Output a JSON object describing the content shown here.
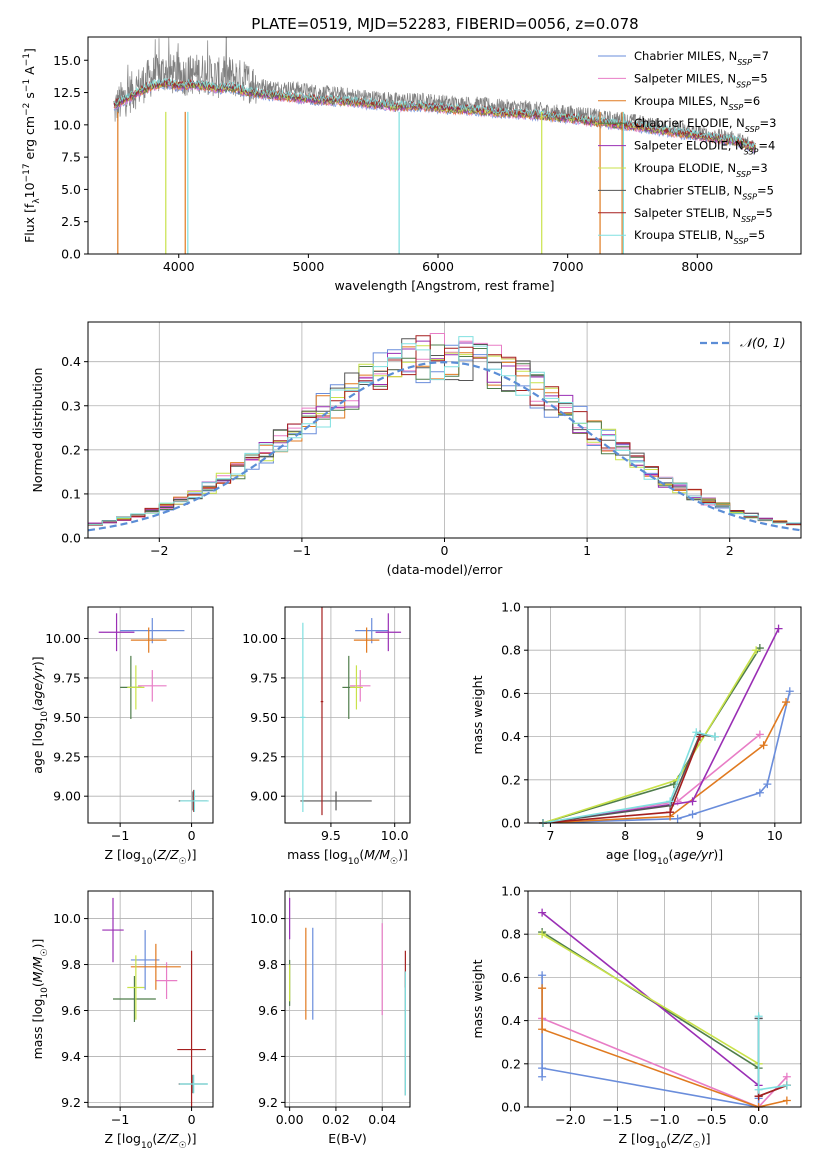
{
  "figure": {
    "title": "PLATE=0519, MJD=52283, FIBERID=0056, z=0.078"
  },
  "series_colors": [
    "#6a8ddb",
    "#e87dc6",
    "#e07a20",
    "#4f7d4b",
    "#9a2fb5",
    "#c9e24a",
    "#555555",
    "#a51f1f",
    "#80e0e0"
  ],
  "chart_data": [
    {
      "id": "spectrum",
      "type": "line",
      "title": "PLATE=0519, MJD=52283, FIBERID=0056, z=0.078",
      "xlabel": "wavelength [Angstrom, rest frame]",
      "ylabel": "Flux [f_λ10^-17 erg cm^-2 s^-1 A^-1]",
      "xlim": [
        3300,
        8800
      ],
      "ylim": [
        0,
        16.8
      ],
      "xticks": [
        4000,
        5000,
        6000,
        7000,
        8000
      ],
      "yticks": [
        0.0,
        2.5,
        5.0,
        7.5,
        10.0,
        12.5,
        15.0
      ],
      "grid": false,
      "legend_position": "top-right",
      "data_trace": {
        "name": "data",
        "color": "#808080",
        "x": [
          3500,
          3600,
          3700,
          3800,
          3900,
          4000,
          4100,
          4200,
          4300,
          4400,
          4500,
          4700,
          4900,
          5100,
          5300,
          5500,
          5700,
          5900,
          6100,
          6300,
          6500,
          6700,
          6900,
          7100,
          7300,
          7500,
          7700,
          7900,
          8100,
          8300,
          8450
        ],
        "y": [
          11.2,
          12.3,
          13.0,
          13.8,
          14.1,
          13.7,
          13.9,
          14.0,
          13.6,
          13.8,
          13.4,
          12.9,
          12.8,
          12.5,
          12.3,
          12.1,
          11.9,
          11.9,
          11.7,
          11.6,
          11.4,
          11.3,
          11.0,
          10.9,
          10.5,
          10.3,
          9.9,
          9.6,
          9.2,
          8.9,
          8.4
        ]
      },
      "model_trace": {
        "x": [
          3500,
          3600,
          3700,
          3800,
          3900,
          4000,
          4100,
          4200,
          4300,
          4400,
          4500,
          4700,
          4900,
          5100,
          5300,
          5500,
          5700,
          5900,
          6100,
          6300,
          6500,
          6700,
          6900,
          7100,
          7300,
          7500,
          7700,
          7900,
          8100,
          8300,
          8450
        ],
        "y": [
          11.5,
          12.0,
          12.6,
          13.0,
          13.2,
          13.0,
          13.1,
          13.0,
          12.8,
          12.9,
          12.6,
          12.3,
          12.1,
          11.9,
          11.8,
          11.6,
          11.4,
          11.4,
          11.2,
          11.1,
          10.9,
          10.8,
          10.6,
          10.4,
          10.1,
          9.9,
          9.6,
          9.3,
          9.0,
          8.7,
          8.2
        ]
      },
      "series": [
        {
          "name": "Chabrier MILES, N_SSP=7",
          "label_main": "Chabrier MILES, N",
          "n": "7"
        },
        {
          "name": "Salpeter MILES, N_SSP=5",
          "label_main": "Salpeter MILES, N",
          "n": "5"
        },
        {
          "name": "Kroupa MILES, N_SSP=6",
          "label_main": "Kroupa MILES, N",
          "n": "6"
        },
        {
          "name": "Chabrier ELODIE, N_SSP=3",
          "label_main": "Chabrier ELODIE, N",
          "n": "3"
        },
        {
          "name": "Salpeter ELODIE, N_SSP=4",
          "label_main": "Salpeter ELODIE, N",
          "n": "4"
        },
        {
          "name": "Kroupa ELODIE, N_SSP=3",
          "label_main": "Kroupa ELODIE, N",
          "n": "3"
        },
        {
          "name": "Chabrier STELIB, N_SSP=5",
          "label_main": "Chabrier STELIB, N",
          "n": "5"
        },
        {
          "name": "Salpeter STELIB, N_SSP=5",
          "label_main": "Salpeter STELIB, N",
          "n": "5"
        },
        {
          "name": "Kroupa STELIB, N_SSP=5",
          "label_main": "Kroupa STELIB, N",
          "n": "5"
        }
      ],
      "legend_subscript": "SSP",
      "drop_lines": [
        {
          "x": 3530,
          "series": 2
        },
        {
          "x": 3900,
          "series": 5
        },
        {
          "x": 4050,
          "series": 2
        },
        {
          "x": 4070,
          "series": 8
        },
        {
          "x": 5700,
          "series": 8
        },
        {
          "x": 6800,
          "series": 5
        },
        {
          "x": 7250,
          "series": 2
        },
        {
          "x": 7420,
          "series": 2
        },
        {
          "x": 7430,
          "series": 8
        }
      ]
    },
    {
      "id": "residuals",
      "type": "histogram",
      "xlabel": "(data-model)/error",
      "ylabel": "Normed distribution",
      "xlim": [
        -2.5,
        2.5
      ],
      "ylim": [
        0,
        0.49
      ],
      "xticks": [
        -2,
        -1,
        0,
        1,
        2
      ],
      "yticks": [
        0.0,
        0.1,
        0.2,
        0.3,
        0.4
      ],
      "grid": true,
      "legend_position": "top-right",
      "legend_label": "𝒩(0, 1)",
      "reference_curve": {
        "name": "N(0,1)",
        "color": "#5b8dd6",
        "mean": 0,
        "sd": 1
      },
      "bin_width": 0.1,
      "bin_start": -2.5,
      "bin_count": 50
    },
    {
      "id": "age_vs_Z",
      "type": "errorbar",
      "xlabel": "Z [log10(Z/Z☉)]",
      "ylabel": "age  [log10(age/yr)]",
      "xlim": [
        -1.45,
        0.3
      ],
      "ylim": [
        8.83,
        10.2
      ],
      "xticks": [
        -1,
        0
      ],
      "yticks": [
        9.0,
        9.25,
        9.5,
        9.75,
        10.0
      ],
      "grid": true,
      "points": [
        {
          "x": -0.55,
          "xerr": 0.45,
          "y": 10.05,
          "yerr": 0.08,
          "series": 0
        },
        {
          "x": -0.55,
          "xerr": 0.2,
          "y": 9.7,
          "yerr": 0.1,
          "series": 1
        },
        {
          "x": -0.6,
          "xerr": 0.25,
          "y": 9.99,
          "yerr": 0.08,
          "series": 2
        },
        {
          "x": -0.85,
          "xerr": 0.15,
          "y": 9.69,
          "yerr": 0.2,
          "series": 3
        },
        {
          "x": -1.05,
          "xerr": 0.25,
          "y": 10.04,
          "yerr": 0.12,
          "series": 4
        },
        {
          "x": -0.78,
          "xerr": 0.12,
          "y": 9.69,
          "yerr": 0.14,
          "series": 5
        },
        {
          "x": 0.02,
          "xerr": 0.2,
          "y": 8.97,
          "yerr": 0.06,
          "series": 6
        },
        {
          "x": 0.03,
          "xerr": 0.01,
          "y": 8.97,
          "yerr": 0.07,
          "series": 7
        },
        {
          "x": 0.04,
          "xerr": 0.2,
          "y": 8.97,
          "yerr": 0.07,
          "series": 8
        }
      ]
    },
    {
      "id": "age_vs_mass",
      "type": "errorbar",
      "xlabel": "mass [log10(M/M☉)]",
      "ylabel": "",
      "xlim": [
        9.14,
        10.12
      ],
      "ylim": [
        8.83,
        10.2
      ],
      "xticks": [
        9.5,
        10.0
      ],
      "yticks": [
        9.0,
        9.25,
        9.5,
        9.75,
        10.0
      ],
      "grid": true,
      "points": [
        {
          "x": 9.82,
          "xerr": 0.13,
          "y": 10.05,
          "yerr": 0.08,
          "series": 0
        },
        {
          "x": 9.73,
          "xerr": 0.08,
          "y": 9.7,
          "yerr": 0.1,
          "series": 1
        },
        {
          "x": 9.78,
          "xerr": 0.1,
          "y": 9.99,
          "yerr": 0.08,
          "series": 2
        },
        {
          "x": 9.64,
          "xerr": 0.05,
          "y": 9.69,
          "yerr": 0.2,
          "series": 3
        },
        {
          "x": 9.95,
          "xerr": 0.1,
          "y": 10.04,
          "yerr": 0.12,
          "series": 4
        },
        {
          "x": 9.7,
          "xerr": 0.05,
          "y": 9.69,
          "yerr": 0.14,
          "series": 5
        },
        {
          "x": 9.54,
          "xerr": 0.28,
          "y": 8.97,
          "yerr": 0.06,
          "series": 6
        },
        {
          "x": 9.43,
          "xerr": 0.01,
          "y": 9.6,
          "yerr": 0.72,
          "series": 7
        },
        {
          "x": 9.28,
          "xerr": 0.02,
          "y": 9.5,
          "yerr": 0.6,
          "series": 8
        }
      ]
    },
    {
      "id": "massweight_vs_age",
      "type": "line",
      "xlabel": "age  [log10(age/yr)]",
      "ylabel": "mass weight",
      "xlim": [
        6.7,
        10.35
      ],
      "ylim": [
        0,
        1.0
      ],
      "xticks": [
        7,
        8,
        9,
        10
      ],
      "yticks": [
        0.0,
        0.2,
        0.4,
        0.6,
        0.8,
        1.0
      ],
      "grid": true,
      "series": [
        {
          "series": 0,
          "x": [
            6.9,
            8.7,
            8.9,
            9.8,
            9.9,
            10.2
          ],
          "y": [
            0.0,
            0.02,
            0.04,
            0.14,
            0.18,
            0.61
          ]
        },
        {
          "series": 1,
          "x": [
            6.9,
            8.7,
            9.8
          ],
          "y": [
            0.0,
            0.1,
            0.41
          ]
        },
        {
          "series": 2,
          "x": [
            6.9,
            8.6,
            9.85,
            10.15
          ],
          "y": [
            0.0,
            0.03,
            0.36,
            0.56
          ]
        },
        {
          "series": 3,
          "x": [
            6.9,
            8.65,
            9.8
          ],
          "y": [
            0.0,
            0.18,
            0.81
          ]
        },
        {
          "series": 4,
          "x": [
            6.9,
            8.9,
            10.05
          ],
          "y": [
            0.0,
            0.1,
            0.9
          ]
        },
        {
          "series": 5,
          "x": [
            6.9,
            8.7,
            9.75
          ],
          "y": [
            0.0,
            0.2,
            0.8
          ]
        },
        {
          "series": 6,
          "x": [
            6.9,
            8.6,
            9.0,
            9.2
          ],
          "y": [
            0.0,
            0.08,
            0.41,
            0.4
          ]
        },
        {
          "series": 7,
          "x": [
            6.9,
            8.6,
            9.0
          ],
          "y": [
            0.0,
            0.05,
            0.4
          ]
        },
        {
          "series": 8,
          "x": [
            6.9,
            8.6,
            8.95,
            9.2
          ],
          "y": [
            0.0,
            0.1,
            0.42,
            0.4
          ]
        }
      ]
    },
    {
      "id": "mass_vs_Z",
      "type": "errorbar",
      "xlabel": "Z [log10(Z/Z☉)]",
      "ylabel": "mass [log10(M/M☉)]",
      "xlim": [
        -1.45,
        0.3
      ],
      "ylim": [
        9.18,
        10.12
      ],
      "xticks": [
        -1,
        0
      ],
      "yticks": [
        9.2,
        9.4,
        9.6,
        9.8,
        10.0
      ],
      "grid": true,
      "points": [
        {
          "x": -0.65,
          "xerr": 0.2,
          "y": 9.82,
          "yerr": 0.13,
          "series": 0
        },
        {
          "x": -0.35,
          "xerr": 0.15,
          "y": 9.73,
          "yerr": 0.08,
          "series": 1
        },
        {
          "x": -0.5,
          "xerr": 0.35,
          "y": 9.79,
          "yerr": 0.1,
          "series": 2
        },
        {
          "x": -0.8,
          "xerr": 0.3,
          "y": 9.65,
          "yerr": 0.1,
          "series": 3
        },
        {
          "x": -1.1,
          "xerr": 0.15,
          "y": 9.95,
          "yerr": 0.14,
          "series": 4
        },
        {
          "x": -0.78,
          "xerr": 0.12,
          "y": 9.7,
          "yerr": 0.14,
          "series": 5
        },
        {
          "x": 0.02,
          "xerr": 0.2,
          "y": 9.28,
          "yerr": 0.04,
          "series": 6
        },
        {
          "x": 0.0,
          "xerr": 0.2,
          "y": 9.43,
          "yerr": 0.43,
          "series": 7
        },
        {
          "x": 0.03,
          "xerr": 0.2,
          "y": 9.28,
          "yerr": 0.04,
          "series": 8
        }
      ]
    },
    {
      "id": "mass_vs_ebv",
      "type": "errorbar",
      "xlabel": "E(B-V)",
      "ylabel": "",
      "xlim": [
        -0.002,
        0.052
      ],
      "ylim": [
        9.18,
        10.12
      ],
      "xticks": [
        0.0,
        0.02,
        0.04
      ],
      "yticks": [
        9.2,
        9.4,
        9.6,
        9.8,
        10.0
      ],
      "grid": true,
      "points": [
        {
          "x": 0.01,
          "xerr": 0,
          "y": 9.76,
          "yerr": 0.2,
          "series": 0
        },
        {
          "x": 0.04,
          "xerr": 0,
          "y": 9.78,
          "yerr": 0.2,
          "series": 1
        },
        {
          "x": 0.007,
          "xerr": 0,
          "y": 9.76,
          "yerr": 0.2,
          "series": 2
        },
        {
          "x": 0.0,
          "xerr": 0,
          "y": 9.72,
          "yerr": 0.1,
          "series": 3
        },
        {
          "x": 0.0,
          "xerr": 0,
          "y": 10.0,
          "yerr": 0.09,
          "series": 4
        },
        {
          "x": 0.0,
          "xerr": 0,
          "y": 9.72,
          "yerr": 0.08,
          "series": 5
        },
        {
          "x": 0.05,
          "xerr": 0,
          "y": 9.5,
          "yerr": 0.27,
          "series": 6
        },
        {
          "x": 0.05,
          "xerr": 0,
          "y": 9.78,
          "yerr": 0.08,
          "series": 7
        },
        {
          "x": 0.05,
          "xerr": 0,
          "y": 9.5,
          "yerr": 0.27,
          "series": 8
        }
      ]
    },
    {
      "id": "massweight_vs_Z",
      "type": "line",
      "xlabel": "Z [log10(Z/Z☉)]",
      "ylabel": "mass weight",
      "xlim": [
        -2.45,
        0.45
      ],
      "ylim": [
        0,
        1.0
      ],
      "xticks": [
        -2.0,
        -1.5,
        -1.0,
        -0.5,
        0.0
      ],
      "yticks": [
        0.0,
        0.2,
        0.4,
        0.6,
        0.8,
        1.0
      ],
      "grid": true,
      "series": [
        {
          "series": 0,
          "x": [
            -2.3,
            -2.3,
            -2.3,
            0.0,
            0.0,
            0.0
          ],
          "y": [
            0.14,
            0.61,
            0.18,
            0.0,
            0.04,
            0.41
          ]
        },
        {
          "series": 1,
          "x": [
            -2.3,
            0.0,
            0.3
          ],
          "y": [
            0.41,
            0.0,
            0.14
          ]
        },
        {
          "series": 2,
          "x": [
            -2.3,
            -2.3,
            0.0,
            0.3
          ],
          "y": [
            0.55,
            0.36,
            0.0,
            0.03
          ]
        },
        {
          "series": 3,
          "x": [
            -2.3,
            0.0
          ],
          "y": [
            0.81,
            0.18
          ]
        },
        {
          "series": 4,
          "x": [
            -2.3,
            0.0
          ],
          "y": [
            0.9,
            0.1
          ]
        },
        {
          "series": 5,
          "x": [
            -2.3,
            0.0
          ],
          "y": [
            0.8,
            0.2
          ]
        },
        {
          "series": 6,
          "x": [
            0.0,
            0.0,
            0.3
          ],
          "y": [
            0.41,
            0.05,
            0.1
          ]
        },
        {
          "series": 7,
          "x": [
            0.0,
            0.3
          ],
          "y": [
            0.05,
            0.1
          ]
        },
        {
          "series": 8,
          "x": [
            0.0,
            0.0,
            0.3
          ],
          "y": [
            0.42,
            0.08,
            0.1
          ]
        }
      ]
    }
  ]
}
